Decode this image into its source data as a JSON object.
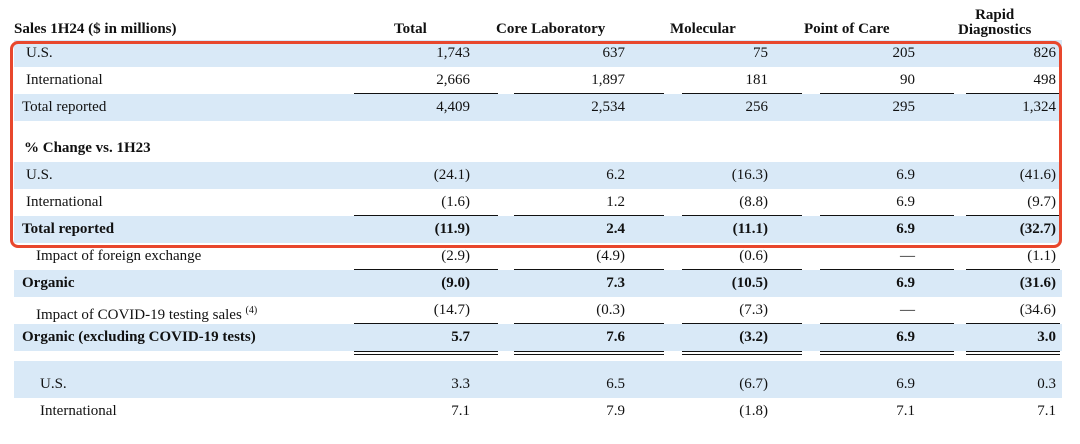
{
  "header": {
    "label": "Sales 1H24 ($ in millions)",
    "cols": [
      "Total",
      "Core Laboratory",
      "Molecular",
      "Point of Care"
    ],
    "rapid_line1": "Rapid",
    "rapid_line2": "Diagnostics"
  },
  "sales": [
    {
      "label": "U.S.",
      "values": [
        "1,743",
        "637",
        "75",
        "205",
        "826"
      ]
    },
    {
      "label": "International",
      "values": [
        "2,666",
        "1,897",
        "181",
        "90",
        "498"
      ]
    },
    {
      "label": "Total reported",
      "values": [
        "4,409",
        "2,534",
        "256",
        "295",
        "1,324"
      ]
    }
  ],
  "change_section_label": "% Change vs. 1H23",
  "change": [
    {
      "label": "U.S.",
      "values": [
        "(24.1)",
        "6.2",
        "(16.3)",
        "6.9",
        "(41.6)"
      ]
    },
    {
      "label": "International",
      "values": [
        "(1.6)",
        "1.2",
        "(8.8)",
        "6.9",
        "(9.7)"
      ]
    },
    {
      "label": "Total reported",
      "values": [
        "(11.9)",
        "2.4",
        "(11.1)",
        "6.9",
        "(32.7)"
      ]
    },
    {
      "label": "Impact of foreign exchange",
      "values": [
        "(2.9)",
        "(4.9)",
        "(0.6)",
        "—",
        "(1.1)"
      ]
    },
    {
      "label": "Organic",
      "values": [
        "(9.0)",
        "7.3",
        "(10.5)",
        "6.9",
        "(31.6)"
      ]
    },
    {
      "label": "Impact of COVID-19 testing sales",
      "footnote": "(4)",
      "values": [
        "(14.7)",
        "(0.3)",
        "(7.3)",
        "—",
        "(34.6)"
      ]
    },
    {
      "label": "Organic (excluding COVID-19 tests)",
      "values": [
        "5.7",
        "7.6",
        "(3.2)",
        "6.9",
        "3.0"
      ]
    }
  ],
  "organic_breakdown": [
    {
      "label": "U.S.",
      "values": [
        "3.3",
        "6.5",
        "(6.7)",
        "6.9",
        "0.3"
      ]
    },
    {
      "label": "International",
      "values": [
        "7.1",
        "7.9",
        "(1.8)",
        "7.1",
        "7.1"
      ]
    }
  ],
  "colors": {
    "row_highlight": "#d9e9f7",
    "annotation_box": "#e8472d"
  }
}
